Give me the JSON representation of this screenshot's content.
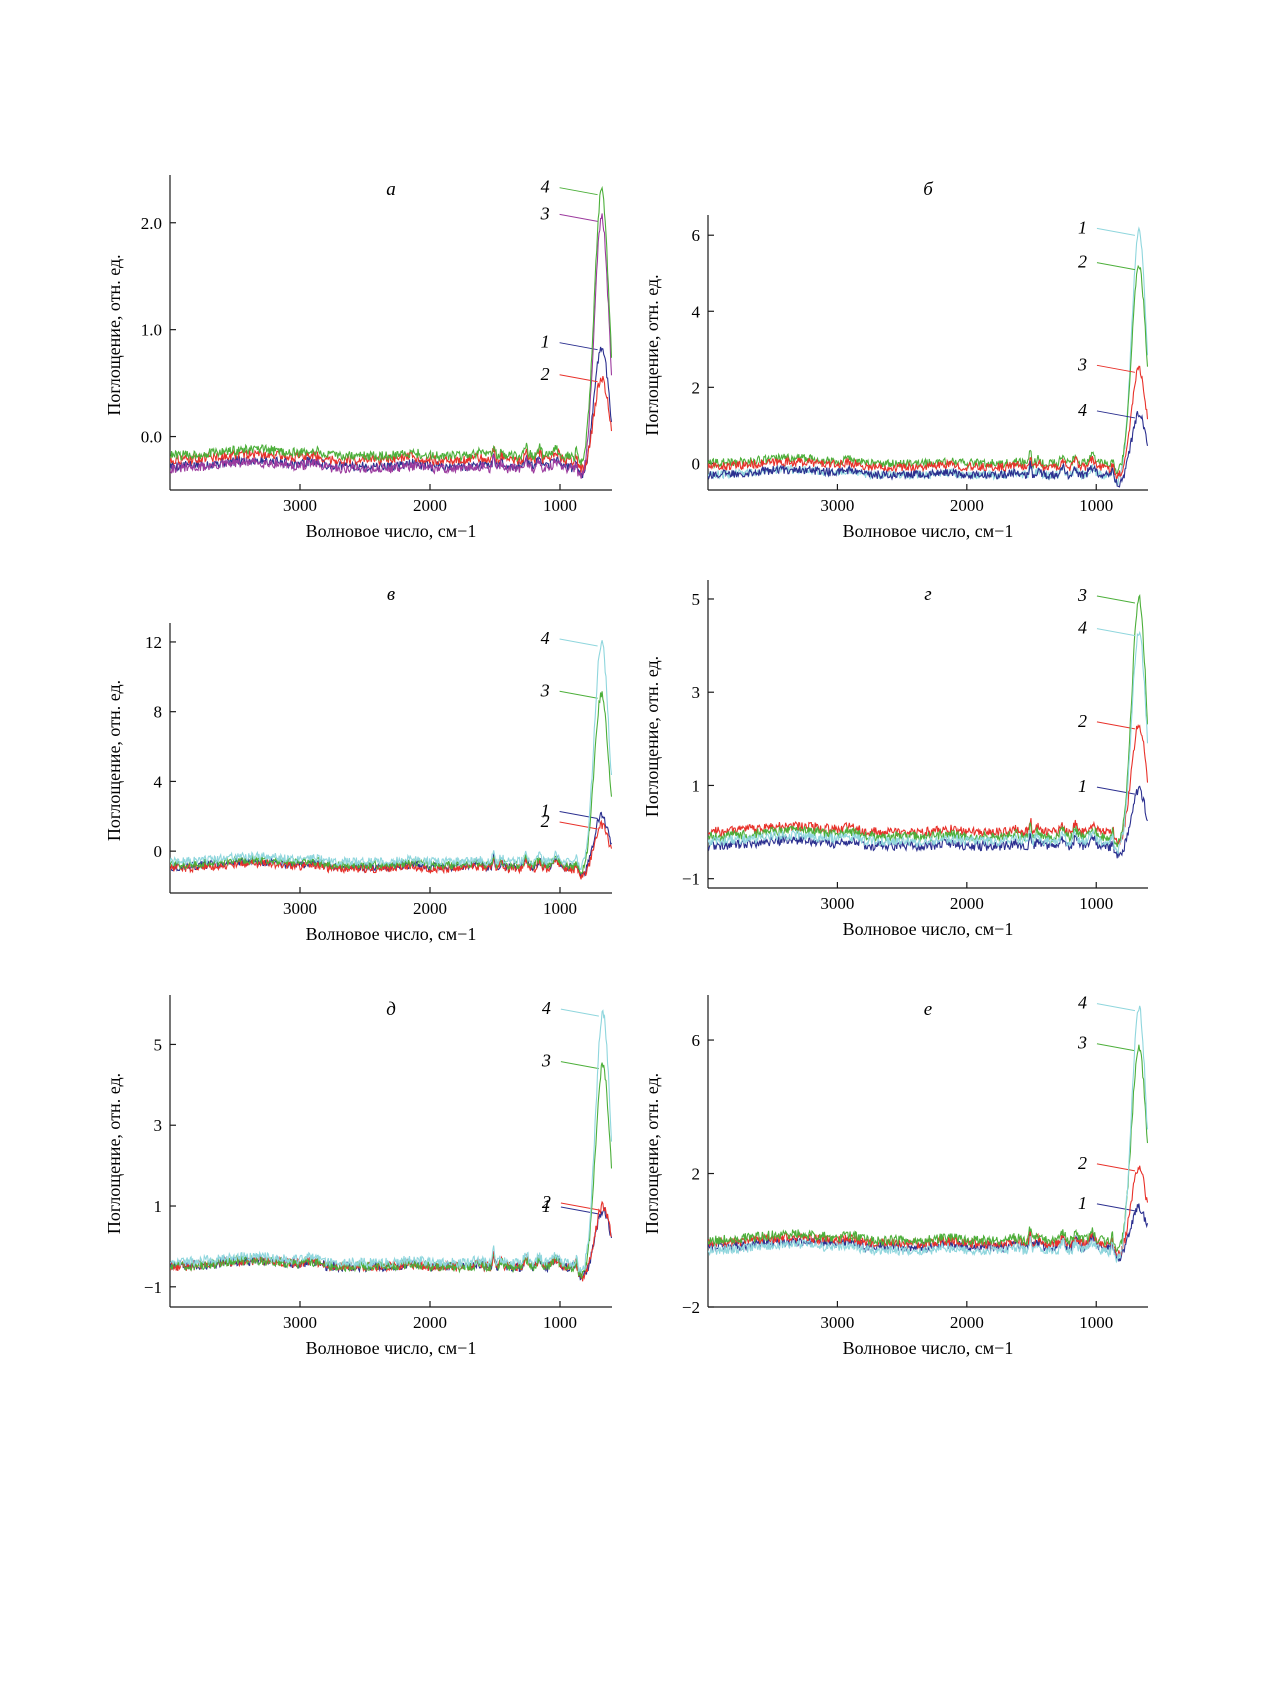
{
  "figure": {
    "colors": {
      "cyan": "#8fd6dd",
      "green": "#4caf3a",
      "red": "#e8312a",
      "blue": "#2b2f8f",
      "purple": "#9c3a9e",
      "axis": "#1a1a1a"
    }
  },
  "chart_data": [
    {
      "type": "line",
      "panel": "а",
      "xlabel": "Волновое число, см−1",
      "ylabel": "Поглощение, отн. ед.",
      "xlim": [
        4000,
        600
      ],
      "ylim": [
        -0.5,
        2.4
      ],
      "x_ticks": [
        3000,
        2000,
        1000
      ],
      "x_tick_labels": [
        "3000",
        "2000",
        "1000"
      ],
      "y_ticks": [
        0,
        1,
        2
      ],
      "y_tick_labels": [
        "0.0",
        "1.0",
        "2.0"
      ],
      "series": [
        {
          "name": "1",
          "color": "blue",
          "baseline": -0.28,
          "peak": 0.85,
          "peak_x": 680
        },
        {
          "name": "2",
          "color": "red",
          "baseline": -0.22,
          "peak": 0.55,
          "peak_x": 680
        },
        {
          "name": "3",
          "color": "purple",
          "baseline": -0.3,
          "peak": 2.05,
          "peak_x": 680
        },
        {
          "name": "4",
          "color": "green",
          "baseline": -0.18,
          "peak": 2.3,
          "peak_x": 680
        }
      ]
    },
    {
      "type": "line",
      "panel": "б",
      "xlabel": "Волновое число, см−1",
      "ylabel": "Поглощение, отн. ед.",
      "xlim": [
        4000,
        600
      ],
      "ylim": [
        -0.7,
        6.4
      ],
      "x_ticks": [
        3000,
        2000,
        1000
      ],
      "x_tick_labels": [
        "3000",
        "2000",
        "1000"
      ],
      "y_ticks": [
        0,
        2,
        4,
        6
      ],
      "y_tick_labels": [
        "0",
        "2",
        "4",
        "6"
      ],
      "series": [
        {
          "name": "1",
          "color": "cyan",
          "baseline": -0.3,
          "peak": 6.1,
          "peak_x": 670
        },
        {
          "name": "2",
          "color": "green",
          "baseline": 0.0,
          "peak": 5.2,
          "peak_x": 670
        },
        {
          "name": "3",
          "color": "red",
          "baseline": -0.1,
          "peak": 2.5,
          "peak_x": 670
        },
        {
          "name": "4",
          "color": "blue",
          "baseline": -0.3,
          "peak": 1.3,
          "peak_x": 670
        }
      ]
    },
    {
      "type": "line",
      "panel": "в",
      "xlabel": "Волновое число, см−1",
      "ylabel": "Поглощение, отн. ед.",
      "xlim": [
        4000,
        600
      ],
      "ylim": [
        -2.4,
        12.8
      ],
      "x_ticks": [
        3000,
        2000,
        1000
      ],
      "x_tick_labels": [
        "3000",
        "2000",
        "1000"
      ],
      "y_ticks": [
        0,
        4,
        8,
        12
      ],
      "y_tick_labels": [
        "0",
        "4",
        "8",
        "12"
      ],
      "series": [
        {
          "name": "1",
          "color": "blue",
          "baseline": -0.9,
          "peak": 2.1,
          "peak_x": 680
        },
        {
          "name": "2",
          "color": "red",
          "baseline": -1.0,
          "peak": 1.5,
          "peak_x": 680
        },
        {
          "name": "3",
          "color": "green",
          "baseline": -0.8,
          "peak": 9.0,
          "peak_x": 680
        },
        {
          "name": "4",
          "color": "cyan",
          "baseline": -0.6,
          "peak": 12.0,
          "peak_x": 680
        }
      ]
    },
    {
      "type": "line",
      "panel": "г",
      "xlabel": "Волновое число, см−1",
      "ylabel": "Поглощение, отн. ед.",
      "xlim": [
        4000,
        600
      ],
      "ylim": [
        -1.2,
        5.3
      ],
      "x_ticks": [
        3000,
        2000,
        1000
      ],
      "x_tick_labels": [
        "3000",
        "2000",
        "1000"
      ],
      "y_ticks": [
        -1,
        1,
        3,
        5
      ],
      "y_tick_labels": [
        "−1",
        "1",
        "3",
        "5"
      ],
      "series": [
        {
          "name": "1",
          "color": "blue",
          "baseline": -0.3,
          "peak": 0.9,
          "peak_x": 670
        },
        {
          "name": "2",
          "color": "red",
          "baseline": 0.0,
          "peak": 2.3,
          "peak_x": 670
        },
        {
          "name": "3",
          "color": "green",
          "baseline": -0.1,
          "peak": 5.0,
          "peak_x": 670
        },
        {
          "name": "4",
          "color": "cyan",
          "baseline": -0.2,
          "peak": 4.3,
          "peak_x": 670
        }
      ]
    },
    {
      "type": "line",
      "panel": "д",
      "xlabel": "Волновое число, см−1",
      "ylabel": "Поглощение, отн. ед.",
      "xlim": [
        4000,
        600
      ],
      "ylim": [
        -1.5,
        6.1
      ],
      "x_ticks": [
        3000,
        2000,
        1000
      ],
      "x_tick_labels": [
        "3000",
        "2000",
        "1000"
      ],
      "y_ticks": [
        -1,
        1,
        3,
        5
      ],
      "y_tick_labels": [
        "−1",
        "1",
        "3",
        "5"
      ],
      "series": [
        {
          "name": "1",
          "color": "blue",
          "baseline": -0.5,
          "peak": 0.9,
          "peak_x": 670
        },
        {
          "name": "2",
          "color": "red",
          "baseline": -0.5,
          "peak": 1.0,
          "peak_x": 670
        },
        {
          "name": "3",
          "color": "green",
          "baseline": -0.5,
          "peak": 4.5,
          "peak_x": 670
        },
        {
          "name": "4",
          "color": "cyan",
          "baseline": -0.4,
          "peak": 5.8,
          "peak_x": 670
        }
      ]
    },
    {
      "type": "line",
      "panel": "е",
      "xlabel": "Волновое число, см−1",
      "ylabel": "Поглощение, отн. ед.",
      "xlim": [
        4000,
        600
      ],
      "ylim": [
        -2.0,
        7.2
      ],
      "x_ticks": [
        3000,
        2000,
        1000
      ],
      "x_tick_labels": [
        "3000",
        "2000",
        "1000"
      ],
      "y_ticks": [
        -2,
        2,
        6
      ],
      "y_tick_labels": [
        "−2",
        "2",
        "6"
      ],
      "series": [
        {
          "name": "1",
          "color": "blue",
          "baseline": -0.2,
          "peak": 1.0,
          "peak_x": 670
        },
        {
          "name": "2",
          "color": "red",
          "baseline": -0.1,
          "peak": 2.2,
          "peak_x": 670
        },
        {
          "name": "3",
          "color": "green",
          "baseline": 0.0,
          "peak": 5.8,
          "peak_x": 670
        },
        {
          "name": "4",
          "color": "cyan",
          "baseline": -0.3,
          "peak": 7.0,
          "peak_x": 670
        }
      ]
    }
  ]
}
